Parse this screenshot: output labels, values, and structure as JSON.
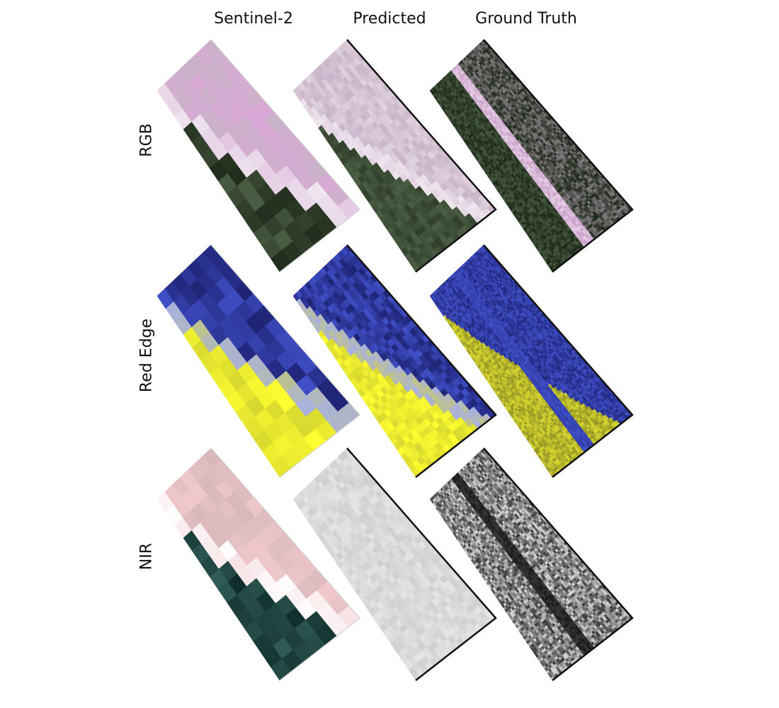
{
  "columns": [
    {
      "id": "sentinel2",
      "label": "Sentinel-2"
    },
    {
      "id": "predicted",
      "label": "Predicted"
    },
    {
      "id": "ground_truth",
      "label": "Ground Truth"
    }
  ],
  "rows": [
    {
      "id": "rgb",
      "label": "RGB"
    },
    {
      "id": "red_edge",
      "label": "Red Edge"
    },
    {
      "id": "nir",
      "label": "NIR"
    }
  ],
  "palettes": {
    "rgb": {
      "dark": "#1e2a1a",
      "mid": "#4b5e44",
      "light": "#c9b3c8",
      "accent": "#d9a9d6",
      "pale": "#eee6ee"
    },
    "red_edge": {
      "dark": "#101050",
      "mid": "#4050c8",
      "light": "#d8d830",
      "accent": "#ffff30",
      "pale": "#a8b0e0"
    },
    "nir": {
      "dark": "#0e2a28",
      "mid": "#2f5a55",
      "light": "#d8b8bc",
      "accent": "#f0c8cc",
      "pale": "#ffffff"
    }
  },
  "gray_palette": {
    "dark": "#2a2a2a",
    "mid": "#7a7a7a",
    "light": "#cfcfcf",
    "pale": "#eeeeee"
  }
}
